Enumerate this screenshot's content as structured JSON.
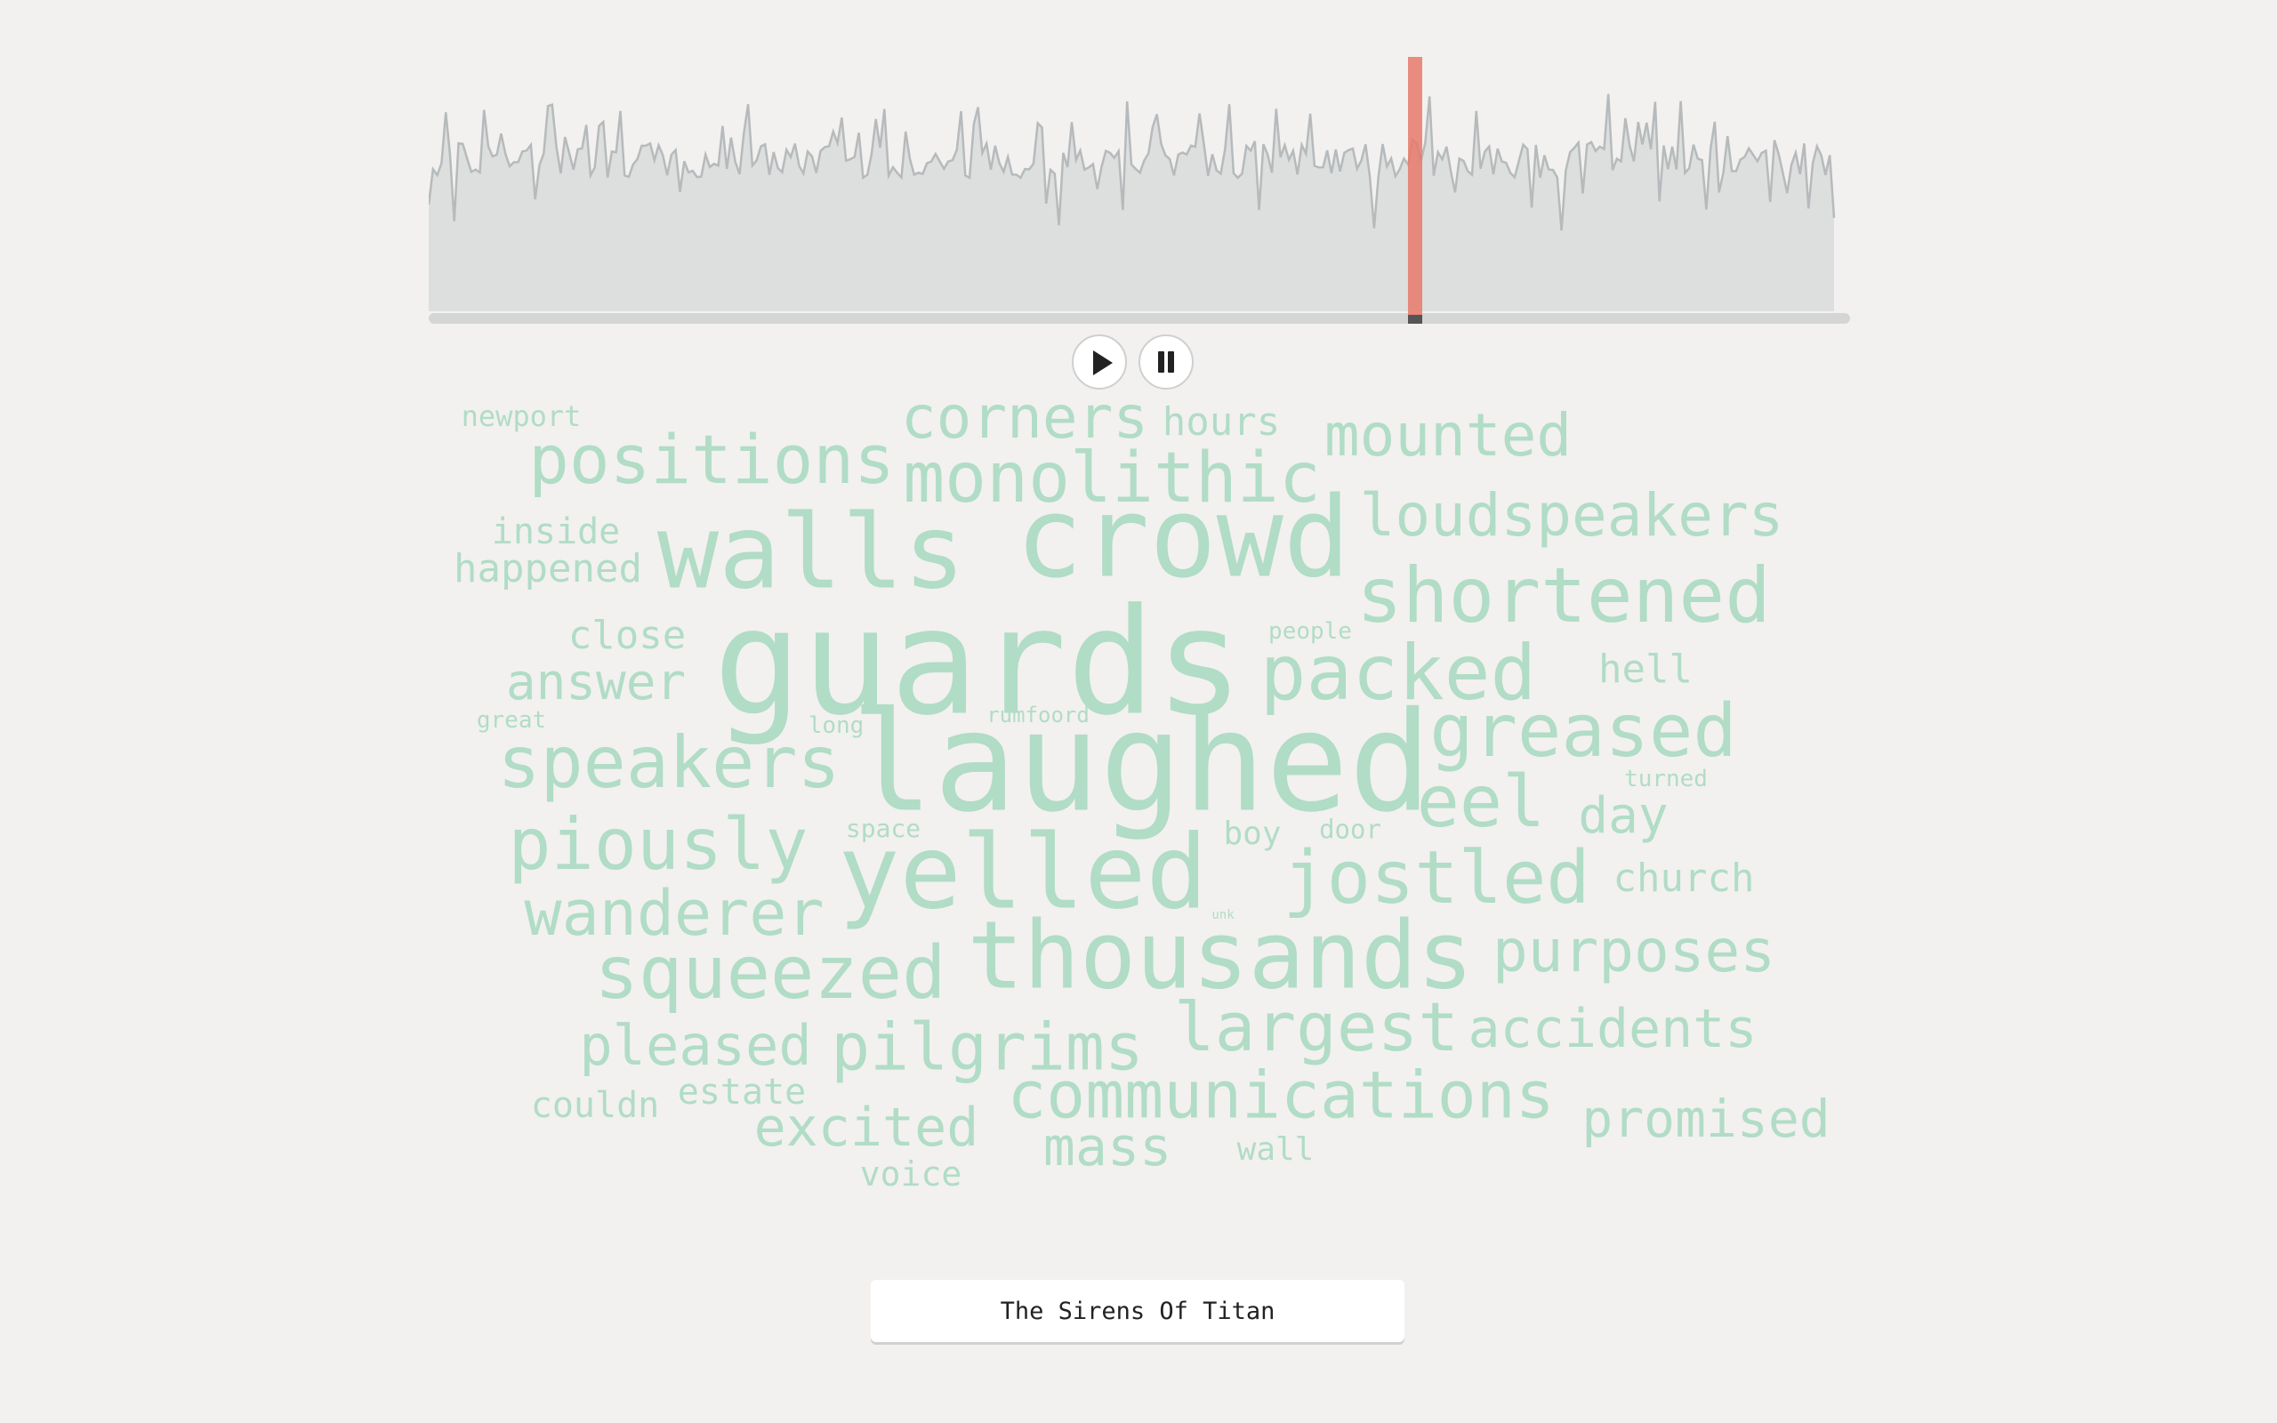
{
  "player": {
    "play_label": "play",
    "pause_label": "pause",
    "play_icon": "play-icon",
    "pause_icon": "pause-icon",
    "progress": 0.694,
    "colors": {
      "waveform_fill": "#dcdfdd",
      "waveform_line": "#b7babc",
      "cursor": "#e8796a",
      "word": "#b1dcc6"
    }
  },
  "word_cloud": {
    "words": [
      {
        "text": "guards",
        "weight": 1.0
      },
      {
        "text": "laughed",
        "weight": 0.95
      },
      {
        "text": "crowd",
        "weight": 0.78
      },
      {
        "text": "walls",
        "weight": 0.73
      },
      {
        "text": "yelled",
        "weight": 0.73
      },
      {
        "text": "thousands",
        "weight": 0.68
      },
      {
        "text": "packed",
        "weight": 0.6
      },
      {
        "text": "shortened",
        "weight": 0.6
      },
      {
        "text": "monolithic",
        "weight": 0.53
      },
      {
        "text": "jostled",
        "weight": 0.57
      },
      {
        "text": "greased",
        "weight": 0.57
      },
      {
        "text": "squeezed",
        "weight": 0.57
      },
      {
        "text": "speakers",
        "weight": 0.55
      },
      {
        "text": "piously",
        "weight": 0.55
      },
      {
        "text": "eel",
        "weight": 0.55
      },
      {
        "text": "positions",
        "weight": 0.53
      },
      {
        "text": "largest",
        "weight": 0.53
      },
      {
        "text": "pilgrims",
        "weight": 0.51
      },
      {
        "text": "communications",
        "weight": 0.51
      },
      {
        "text": "wanderer",
        "weight": 0.48
      },
      {
        "text": "corners",
        "weight": 0.46
      },
      {
        "text": "mounted",
        "weight": 0.46
      },
      {
        "text": "loudspeakers",
        "weight": 0.46
      },
      {
        "text": "purposes",
        "weight": 0.46
      },
      {
        "text": "pleased",
        "weight": 0.44
      },
      {
        "text": "excited",
        "weight": 0.42
      },
      {
        "text": "mass",
        "weight": 0.42
      },
      {
        "text": "accidents",
        "weight": 0.42
      },
      {
        "text": "promised",
        "weight": 0.4
      },
      {
        "text": "answer",
        "weight": 0.38
      },
      {
        "text": "day",
        "weight": 0.38
      },
      {
        "text": "close",
        "weight": 0.32
      },
      {
        "text": "hours",
        "weight": 0.32
      },
      {
        "text": "hell",
        "weight": 0.32
      },
      {
        "text": "church",
        "weight": 0.32
      },
      {
        "text": "happened",
        "weight": 0.32
      },
      {
        "text": "inside",
        "weight": 0.3
      },
      {
        "text": "estate",
        "weight": 0.3
      },
      {
        "text": "couldn",
        "weight": 0.3
      },
      {
        "text": "voice",
        "weight": 0.3
      },
      {
        "text": "wall",
        "weight": 0.28
      },
      {
        "text": "boy",
        "weight": 0.27
      },
      {
        "text": "newport",
        "weight": 0.25
      },
      {
        "text": "door",
        "weight": 0.22
      },
      {
        "text": "space",
        "weight": 0.22
      },
      {
        "text": "people",
        "weight": 0.2
      },
      {
        "text": "great",
        "weight": 0.2
      },
      {
        "text": "long",
        "weight": 0.2
      },
      {
        "text": "rumfoord",
        "weight": 0.19
      },
      {
        "text": "turned",
        "weight": 0.2
      },
      {
        "text": "unk",
        "weight": 0.1
      }
    ]
  },
  "title": "The Sirens Of Titan"
}
